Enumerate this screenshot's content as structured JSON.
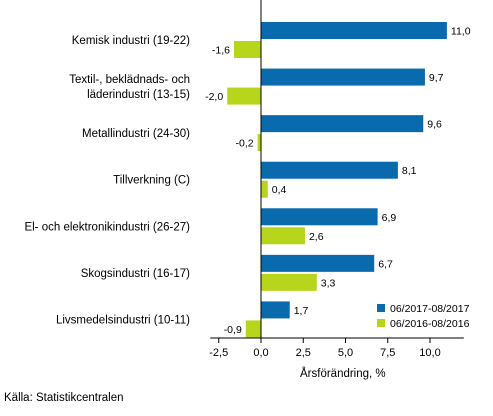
{
  "chart_data": {
    "type": "bar",
    "orientation": "horizontal",
    "categories": [
      "Kemisk industri (19-22)",
      "Textil-, beklädnads- och\nläderindustri (13-15)",
      "Metallindustri (24-30)",
      "Tillverkning (C)",
      "El- och elektronikindustri (26-27)",
      "Skogsindustri (16-17)",
      "Livsmedelsindustri (10-11)"
    ],
    "series": [
      {
        "name": "06/2017-08/2017",
        "color": "#0a6aae",
        "values": [
          11.0,
          9.7,
          9.6,
          8.1,
          6.9,
          6.7,
          1.7
        ],
        "labels": [
          "11,0",
          "9,7",
          "9,6",
          "8,1",
          "6,9",
          "6,7",
          "1,7"
        ]
      },
      {
        "name": "06/2016-08/2016",
        "color": "#b6d51b",
        "values": [
          -1.6,
          -2.0,
          -0.2,
          0.4,
          2.6,
          3.3,
          -0.9
        ],
        "labels": [
          "-1,6",
          "-2,0",
          "-0,2",
          "0,4",
          "2,6",
          "3,3",
          "-0,9"
        ]
      }
    ],
    "xlim": [
      -3.0,
      12.0
    ],
    "xticks": [
      -2.5,
      0.0,
      2.5,
      5.0,
      7.5,
      10.0
    ],
    "xtick_labels": [
      "-2,5",
      "0,0",
      "2,5",
      "5,0",
      "7,5",
      "10,0"
    ],
    "xlabel": "Årsförändring, %",
    "legend_position": "bottom-right",
    "grid": false
  },
  "source": "Källa: Statistikcentralen"
}
